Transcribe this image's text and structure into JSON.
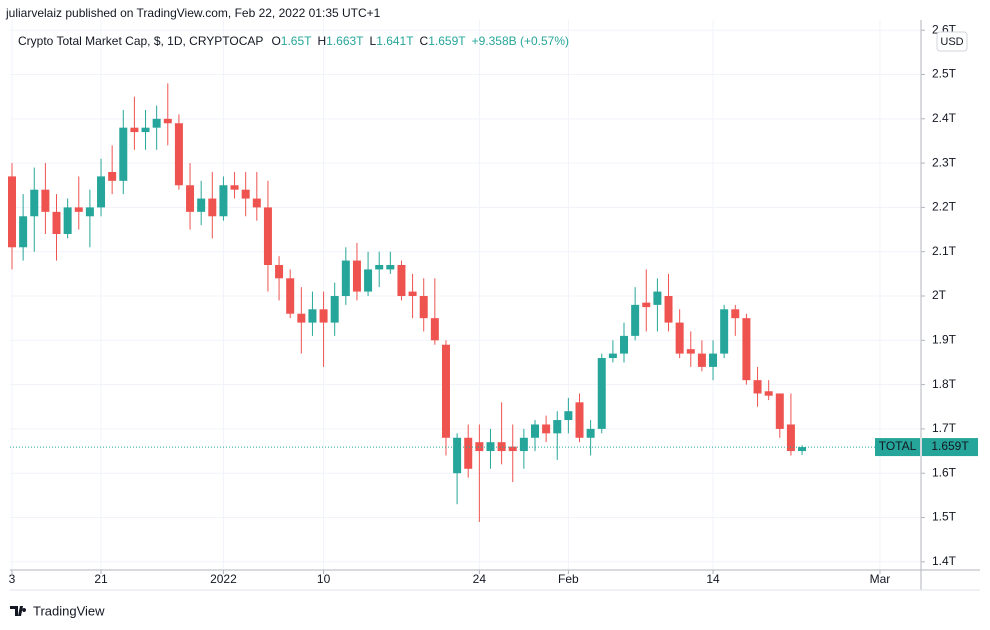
{
  "header": {
    "byline": "juliarvelaiz published on TradingView.com, Feb 22, 2022 01:35 UTC+1",
    "ohlc": [
      {
        "key": "O",
        "value": "1.65T"
      },
      {
        "key": "H",
        "value": "1.663T"
      },
      {
        "key": "L",
        "value": "1.641T"
      },
      {
        "key": "C",
        "value": "1.659T"
      }
    ],
    "change": "+9.358B (+0.57%)",
    "currency_button": "USD"
  },
  "chart_data": {
    "type": "candlestick",
    "title": "Crypto Total Market Cap, $, 1D, CRYPTOCAP",
    "up_color": "#26a69a",
    "down_color": "#ef5350",
    "grid": true,
    "series_name": "TOTAL",
    "last_price_label": "1.659T",
    "xlim": [
      -0.18,
      81.6
    ],
    "xticks": [
      {
        "value": 0,
        "label": "3"
      },
      {
        "value": 8,
        "label": "21"
      },
      {
        "value": 19,
        "label": "2022"
      },
      {
        "value": 28,
        "label": "10"
      },
      {
        "value": 42,
        "label": "24"
      },
      {
        "value": 50,
        "label": "Feb"
      },
      {
        "value": 63,
        "label": "14"
      },
      {
        "value": 78,
        "label": "Mar"
      }
    ],
    "ylim": [
      1.3815,
      2.605
    ],
    "yticks": [
      {
        "value": 1.4,
        "label": "1.4T"
      },
      {
        "value": 1.5,
        "label": "1.5T"
      },
      {
        "value": 1.6,
        "label": "1.6T"
      },
      {
        "value": 1.7,
        "label": "1.7T"
      },
      {
        "value": 1.8,
        "label": "1.8T"
      },
      {
        "value": 1.9,
        "label": "1.9T"
      },
      {
        "value": 2.0,
        "label": "2T"
      },
      {
        "value": 2.1,
        "label": "2.1T"
      },
      {
        "value": 2.2,
        "label": "2.2T"
      },
      {
        "value": 2.3,
        "label": "2.3T"
      },
      {
        "value": 2.4,
        "label": "2.4T"
      },
      {
        "value": 2.5,
        "label": "2.5T"
      },
      {
        "value": 2.6,
        "label": "2.6T"
      }
    ],
    "open": [
      2.27,
      2.11,
      2.18,
      2.24,
      2.19,
      2.14,
      2.2,
      2.18,
      2.2,
      2.28,
      2.26,
      2.38,
      2.37,
      2.38,
      2.4,
      2.39,
      2.25,
      2.19,
      2.22,
      2.18,
      2.25,
      2.24,
      2.22,
      2.2,
      2.07,
      2.04,
      1.96,
      1.94,
      1.97,
      1.94,
      2.0,
      2.08,
      2.01,
      2.06,
      2.06,
      2.07,
      2.01,
      2.0,
      1.95,
      1.89,
      1.6,
      1.68,
      1.67,
      1.65,
      1.67,
      1.66,
      1.65,
      1.68,
      1.71,
      1.69,
      1.72,
      1.76,
      1.68,
      1.7,
      1.86,
      1.87,
      1.91,
      1.985,
      1.98,
      2.0,
      1.94,
      1.88,
      1.87,
      1.84,
      1.87,
      1.97,
      1.95,
      1.81,
      1.785,
      1.78,
      1.71,
      1.65
    ],
    "high": [
      2.3,
      2.23,
      2.29,
      2.3,
      2.23,
      2.22,
      2.27,
      2.24,
      2.31,
      2.34,
      2.42,
      2.45,
      2.42,
      2.43,
      2.48,
      2.41,
      2.3,
      2.26,
      2.28,
      2.27,
      2.28,
      2.28,
      2.28,
      2.26,
      2.09,
      2.06,
      2.02,
      2.01,
      2.01,
      2.03,
      2.11,
      2.12,
      2.1,
      2.1,
      2.1,
      2.08,
      2.05,
      2.04,
      2.04,
      1.9,
      1.69,
      1.71,
      1.71,
      1.7,
      1.76,
      1.71,
      1.7,
      1.72,
      1.73,
      1.74,
      1.77,
      1.78,
      1.72,
      1.87,
      1.9,
      1.94,
      2.02,
      2.06,
      2.04,
      2.05,
      1.97,
      1.92,
      1.9,
      1.9,
      1.98,
      1.98,
      1.96,
      1.84,
      1.81,
      1.78,
      1.78,
      1.663
    ],
    "low": [
      2.06,
      2.08,
      2.1,
      2.14,
      2.08,
      2.13,
      2.15,
      2.11,
      2.18,
      2.23,
      2.23,
      2.33,
      2.33,
      2.33,
      2.34,
      2.24,
      2.15,
      2.16,
      2.13,
      2.17,
      2.22,
      2.18,
      2.17,
      2.01,
      1.99,
      1.95,
      1.87,
      1.91,
      1.84,
      1.91,
      1.98,
      1.99,
      2.0,
      2.02,
      2.05,
      1.99,
      1.95,
      1.92,
      1.89,
      1.64,
      1.53,
      1.59,
      1.49,
      1.61,
      1.62,
      1.58,
      1.61,
      1.65,
      1.67,
      1.63,
      1.69,
      1.67,
      1.64,
      1.69,
      1.85,
      1.85,
      1.9,
      1.92,
      1.92,
      1.92,
      1.86,
      1.84,
      1.83,
      1.81,
      1.86,
      1.91,
      1.8,
      1.75,
      1.765,
      1.68,
      1.64,
      1.641
    ],
    "close": [
      2.11,
      2.18,
      2.24,
      2.19,
      2.14,
      2.2,
      2.19,
      2.2,
      2.27,
      2.26,
      2.38,
      2.37,
      2.38,
      2.4,
      2.39,
      2.25,
      2.19,
      2.22,
      2.18,
      2.25,
      2.24,
      2.22,
      2.2,
      2.07,
      2.04,
      1.96,
      1.94,
      1.97,
      1.94,
      2.0,
      2.08,
      2.01,
      2.06,
      2.07,
      2.07,
      2.0,
      2.0,
      1.95,
      1.9,
      1.68,
      1.68,
      1.61,
      1.65,
      1.67,
      1.65,
      1.65,
      1.68,
      1.71,
      1.69,
      1.72,
      1.74,
      1.68,
      1.7,
      1.86,
      1.87,
      1.91,
      1.98,
      1.975,
      2.01,
      1.94,
      1.87,
      1.87,
      1.84,
      1.87,
      1.97,
      1.95,
      1.81,
      1.78,
      1.775,
      1.7,
      1.65,
      1.659
    ]
  },
  "footer": {
    "brand": "TradingView"
  }
}
